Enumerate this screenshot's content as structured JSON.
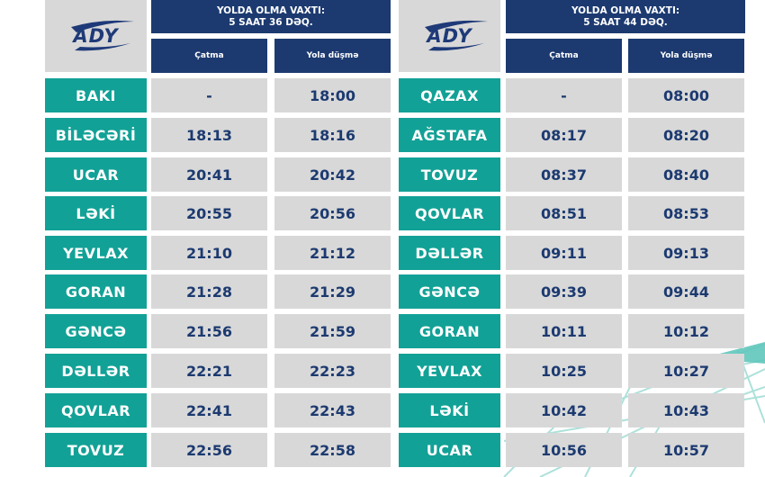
{
  "brand": {
    "logo_text": "ADY",
    "navy": "#1c3a70",
    "teal": "#12a196",
    "cell_grey": "#d8d8d8"
  },
  "schedules": [
    {
      "travel_label": "YOLDA OLMA VAXTI:",
      "travel_time": "5 SAAT 36 DƏQ.",
      "col_arrival": "Çatma",
      "col_departure": "Yola düşmə",
      "rows": [
        {
          "station": "BAKI",
          "arrival": "-",
          "departure": "18:00"
        },
        {
          "station": "BİLƏCƏRİ",
          "arrival": "18:13",
          "departure": "18:16"
        },
        {
          "station": "UCAR",
          "arrival": "20:41",
          "departure": "20:42"
        },
        {
          "station": "LƏKİ",
          "arrival": "20:55",
          "departure": "20:56"
        },
        {
          "station": "YEVLAX",
          "arrival": "21:10",
          "departure": "21:12"
        },
        {
          "station": "GORAN",
          "arrival": "21:28",
          "departure": "21:29"
        },
        {
          "station": "GƏNCƏ",
          "arrival": "21:56",
          "departure": "21:59"
        },
        {
          "station": "DƏLLƏR",
          "arrival": "22:21",
          "departure": "22:23"
        },
        {
          "station": "QOVLAR",
          "arrival": "22:41",
          "departure": "22:43"
        },
        {
          "station": "TOVUZ",
          "arrival": "22:56",
          "departure": "22:58"
        }
      ]
    },
    {
      "travel_label": "YOLDA OLMA VAXTI:",
      "travel_time": "5 SAAT 44 DƏQ.",
      "col_arrival": "Çatma",
      "col_departure": "Yola düşmə",
      "rows": [
        {
          "station": "QAZAX",
          "arrival": "-",
          "departure": "08:00"
        },
        {
          "station": "AĞSTAFA",
          "arrival": "08:17",
          "departure": "08:20"
        },
        {
          "station": "TOVUZ",
          "arrival": "08:37",
          "departure": "08:40"
        },
        {
          "station": "QOVLAR",
          "arrival": "08:51",
          "departure": "08:53"
        },
        {
          "station": "DƏLLƏR",
          "arrival": "09:11",
          "departure": "09:13"
        },
        {
          "station": "GƏNCƏ",
          "arrival": "09:39",
          "departure": "09:44"
        },
        {
          "station": "GORAN",
          "arrival": "10:11",
          "departure": "10:12"
        },
        {
          "station": "YEVLAX",
          "arrival": "10:25",
          "departure": "10:27"
        },
        {
          "station": "LƏKİ",
          "arrival": "10:42",
          "departure": "10:43"
        },
        {
          "station": "UCAR",
          "arrival": "10:56",
          "departure": "10:57"
        }
      ]
    }
  ]
}
